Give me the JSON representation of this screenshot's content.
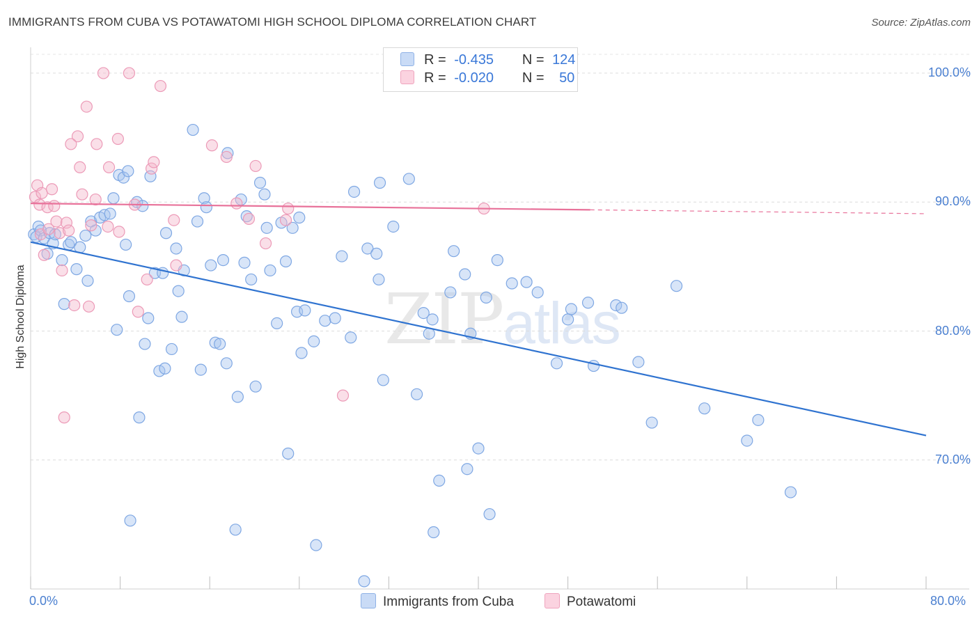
{
  "title": "IMMIGRANTS FROM CUBA VS POTAWATOMI HIGH SCHOOL DIPLOMA CORRELATION CHART",
  "source": "Source: ZipAtlas.com",
  "watermark": {
    "zip": "ZIP",
    "atlas": "atlas"
  },
  "legend": {
    "rows": [
      {
        "r_label": "R =",
        "r_value": "-0.435",
        "n_label": "N =",
        "n_value": "124",
        "color": "#a8c6f0"
      },
      {
        "r_label": "R =",
        "r_value": "-0.020",
        "n_label": "N =",
        "n_value": "50",
        "color": "#f5b8cc"
      }
    ]
  },
  "chart_data": {
    "type": "scatter",
    "xlabel": "",
    "ylabel": "High School Diploma",
    "xlim": [
      0,
      80
    ],
    "ylim": [
      60,
      102
    ],
    "x_tick_labels": [
      "0.0%",
      "80.0%"
    ],
    "y_ticks": [
      70,
      80,
      90,
      100
    ],
    "y_tick_labels": [
      "70.0%",
      "80.0%",
      "90.0%",
      "100.0%"
    ],
    "series": [
      {
        "name": "Immigrants from Cuba",
        "color": "#a8c6f0",
        "line_color": "#2f73d0",
        "trend": {
          "x": [
            0,
            80
          ],
          "y": [
            86.9,
            71.9
          ]
        },
        "points": [
          [
            0.3,
            87.5
          ],
          [
            0.5,
            87.3
          ],
          [
            0.7,
            88.1
          ],
          [
            0.9,
            87.8
          ],
          [
            1.2,
            87.2
          ],
          [
            1.5,
            86.0
          ],
          [
            1.7,
            87.6
          ],
          [
            2.0,
            86.8
          ],
          [
            2.2,
            87.5
          ],
          [
            2.8,
            85.5
          ],
          [
            3.0,
            82.1
          ],
          [
            3.4,
            86.7
          ],
          [
            3.6,
            86.9
          ],
          [
            4.1,
            84.8
          ],
          [
            4.4,
            86.5
          ],
          [
            4.9,
            87.4
          ],
          [
            5.1,
            83.9
          ],
          [
            5.4,
            88.5
          ],
          [
            5.8,
            87.8
          ],
          [
            6.2,
            88.8
          ],
          [
            6.6,
            89.0
          ],
          [
            7.1,
            89.1
          ],
          [
            7.4,
            90.3
          ],
          [
            7.7,
            80.1
          ],
          [
            7.9,
            92.1
          ],
          [
            8.3,
            91.9
          ],
          [
            8.5,
            86.7
          ],
          [
            8.7,
            92.4
          ],
          [
            8.8,
            82.7
          ],
          [
            8.9,
            65.3
          ],
          [
            9.5,
            90.0
          ],
          [
            9.7,
            73.3
          ],
          [
            10.0,
            89.7
          ],
          [
            10.2,
            79.0
          ],
          [
            10.5,
            81.0
          ],
          [
            10.7,
            92.0
          ],
          [
            11.1,
            84.5
          ],
          [
            11.5,
            76.9
          ],
          [
            11.8,
            84.5
          ],
          [
            12.0,
            77.1
          ],
          [
            12.1,
            87.6
          ],
          [
            12.6,
            78.6
          ],
          [
            13.0,
            86.4
          ],
          [
            13.2,
            83.1
          ],
          [
            13.5,
            81.1
          ],
          [
            13.7,
            84.7
          ],
          [
            14.5,
            95.6
          ],
          [
            14.9,
            88.5
          ],
          [
            15.2,
            77.0
          ],
          [
            15.5,
            90.3
          ],
          [
            15.7,
            89.6
          ],
          [
            16.1,
            85.1
          ],
          [
            16.5,
            79.1
          ],
          [
            16.9,
            79.0
          ],
          [
            17.2,
            85.5
          ],
          [
            17.5,
            77.5
          ],
          [
            17.6,
            93.8
          ],
          [
            18.3,
            64.6
          ],
          [
            18.5,
            74.9
          ],
          [
            18.8,
            90.2
          ],
          [
            19.1,
            85.3
          ],
          [
            19.3,
            88.9
          ],
          [
            19.7,
            84.0
          ],
          [
            20.1,
            75.7
          ],
          [
            20.5,
            91.5
          ],
          [
            20.9,
            90.6
          ],
          [
            21.1,
            88.0
          ],
          [
            21.4,
            84.7
          ],
          [
            22.0,
            80.6
          ],
          [
            22.4,
            88.4
          ],
          [
            22.8,
            85.4
          ],
          [
            23.0,
            70.5
          ],
          [
            23.4,
            88.0
          ],
          [
            23.8,
            81.5
          ],
          [
            24.0,
            88.8
          ],
          [
            24.2,
            78.3
          ],
          [
            24.5,
            81.6
          ],
          [
            25.3,
            79.2
          ],
          [
            25.5,
            63.4
          ],
          [
            26.3,
            80.8
          ],
          [
            27.2,
            81.0
          ],
          [
            27.8,
            85.8
          ],
          [
            28.6,
            79.5
          ],
          [
            28.9,
            90.8
          ],
          [
            29.8,
            60.6
          ],
          [
            30.1,
            86.4
          ],
          [
            30.9,
            86.0
          ],
          [
            31.1,
            84.0
          ],
          [
            31.2,
            91.5
          ],
          [
            31.5,
            76.2
          ],
          [
            32.4,
            88.1
          ],
          [
            33.8,
            91.8
          ],
          [
            34.5,
            75.1
          ],
          [
            35.1,
            81.4
          ],
          [
            35.6,
            79.8
          ],
          [
            35.9,
            80.9
          ],
          [
            36.0,
            64.4
          ],
          [
            36.5,
            68.4
          ],
          [
            37.5,
            83.0
          ],
          [
            37.8,
            86.2
          ],
          [
            38.8,
            84.4
          ],
          [
            39.0,
            69.3
          ],
          [
            39.3,
            79.8
          ],
          [
            40.0,
            70.9
          ],
          [
            40.7,
            82.6
          ],
          [
            41.0,
            65.8
          ],
          [
            41.7,
            85.5
          ],
          [
            43.0,
            83.7
          ],
          [
            44.3,
            83.8
          ],
          [
            45.3,
            83.0
          ],
          [
            47.0,
            77.5
          ],
          [
            48.0,
            80.9
          ],
          [
            48.3,
            81.7
          ],
          [
            49.8,
            82.2
          ],
          [
            50.3,
            77.3
          ],
          [
            52.3,
            82.0
          ],
          [
            52.8,
            81.8
          ],
          [
            54.3,
            77.6
          ],
          [
            55.5,
            72.9
          ],
          [
            57.7,
            83.5
          ],
          [
            60.2,
            74.0
          ],
          [
            64.0,
            71.5
          ],
          [
            65.0,
            73.1
          ],
          [
            67.9,
            67.5
          ]
        ]
      },
      {
        "name": "Potawatomi",
        "color": "#f5b8cc",
        "line_color": "#e8729a",
        "trend": {
          "x": [
            0,
            50
          ],
          "y": [
            89.9,
            89.4
          ]
        },
        "trend_dashed": {
          "x": [
            50,
            80
          ],
          "y": [
            89.4,
            89.1
          ]
        },
        "points": [
          [
            0.4,
            90.4
          ],
          [
            0.6,
            91.3
          ],
          [
            0.8,
            89.8
          ],
          [
            0.9,
            87.5
          ],
          [
            1.0,
            90.7
          ],
          [
            1.2,
            85.9
          ],
          [
            1.5,
            89.6
          ],
          [
            1.9,
            91.0
          ],
          [
            2.1,
            89.7
          ],
          [
            2.3,
            88.5
          ],
          [
            2.6,
            87.6
          ],
          [
            2.8,
            84.7
          ],
          [
            3.0,
            73.3
          ],
          [
            3.2,
            88.4
          ],
          [
            3.4,
            87.8
          ],
          [
            3.9,
            82.0
          ],
          [
            4.2,
            95.1
          ],
          [
            4.4,
            92.7
          ],
          [
            4.6,
            90.6
          ],
          [
            5.0,
            97.4
          ],
          [
            5.2,
            81.9
          ],
          [
            5.4,
            88.2
          ],
          [
            5.8,
            90.2
          ],
          [
            5.9,
            94.5
          ],
          [
            6.5,
            100.0
          ],
          [
            7.0,
            92.7
          ],
          [
            7.8,
            94.9
          ],
          [
            7.9,
            87.7
          ],
          [
            8.8,
            100.0
          ],
          [
            9.3,
            89.8
          ],
          [
            9.6,
            81.5
          ],
          [
            10.4,
            84.0
          ],
          [
            10.8,
            92.6
          ],
          [
            11.0,
            93.1
          ],
          [
            11.6,
            99.0
          ],
          [
            13.0,
            85.1
          ],
          [
            16.2,
            94.4
          ],
          [
            17.5,
            93.5
          ],
          [
            18.4,
            89.9
          ],
          [
            19.5,
            88.7
          ],
          [
            20.1,
            92.8
          ],
          [
            21.0,
            86.8
          ],
          [
            23.0,
            89.5
          ],
          [
            27.9,
            75.0
          ],
          [
            40.5,
            89.5
          ],
          [
            3.6,
            94.5
          ],
          [
            1.6,
            87.9
          ],
          [
            6.9,
            88.1
          ],
          [
            12.8,
            88.6
          ],
          [
            22.8,
            88.6
          ]
        ]
      }
    ]
  }
}
